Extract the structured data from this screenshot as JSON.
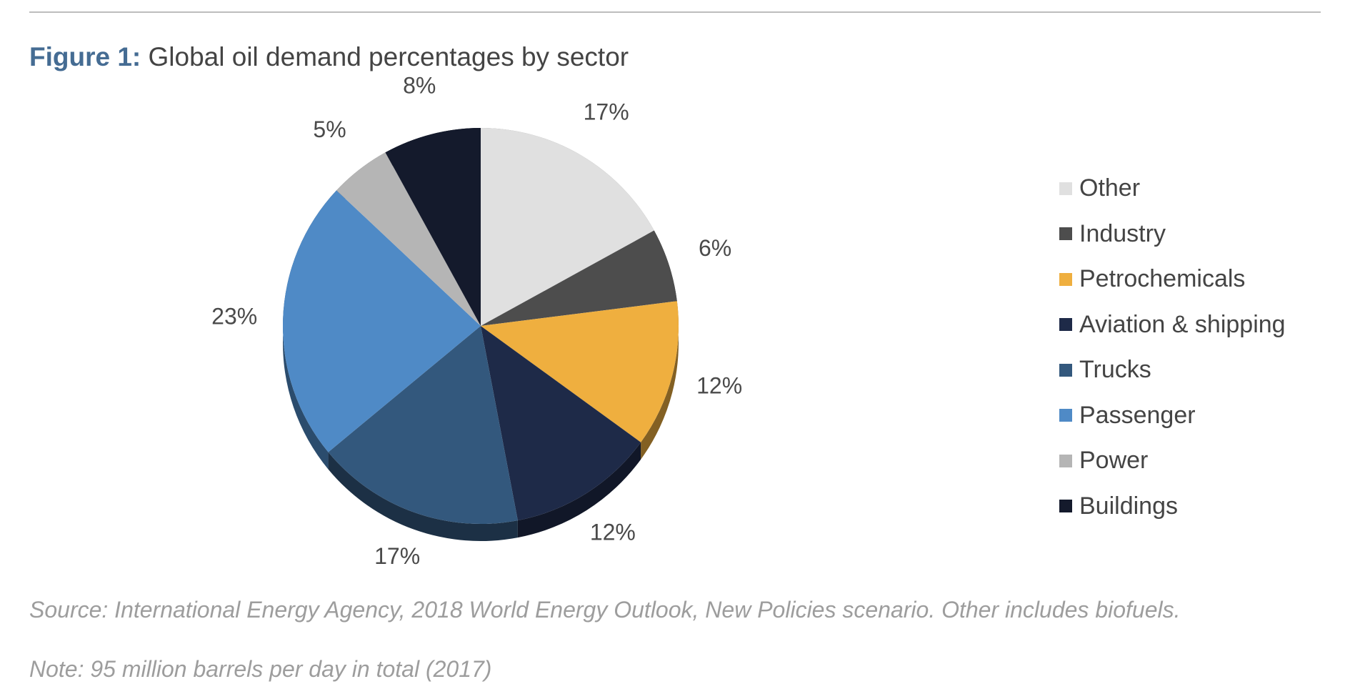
{
  "figure": {
    "label": "Figure 1:",
    "title": "Global oil demand percentages by sector"
  },
  "chart_data": {
    "type": "pie",
    "style": "3d",
    "title": "Global oil demand percentages by sector",
    "legend_position": "right",
    "slices": [
      {
        "name": "Other",
        "value": 17,
        "label": "17%",
        "color": "#e0e0e0"
      },
      {
        "name": "Industry",
        "value": 6,
        "label": "6%",
        "color": "#4d4d4d"
      },
      {
        "name": "Petrochemicals",
        "value": 12,
        "label": "12%",
        "color": "#efaf3f"
      },
      {
        "name": "Aviation & shipping",
        "value": 12,
        "label": "12%",
        "color": "#1e2a48"
      },
      {
        "name": "Trucks",
        "value": 17,
        "label": "17%",
        "color": "#33587d"
      },
      {
        "name": "Passenger",
        "value": 23,
        "label": "23%",
        "color": "#4f8ac6"
      },
      {
        "name": "Power",
        "value": 5,
        "label": "5%",
        "color": "#b5b5b5"
      },
      {
        "name": "Buildings",
        "value": 8,
        "label": "8%",
        "color": "#141a2c"
      }
    ]
  },
  "source": "Source: International Energy Agency, 2018 World Energy Outlook, New Policies scenario. Other includes biofuels.",
  "note": "Note: 95 million barrels per day in total (2017)"
}
